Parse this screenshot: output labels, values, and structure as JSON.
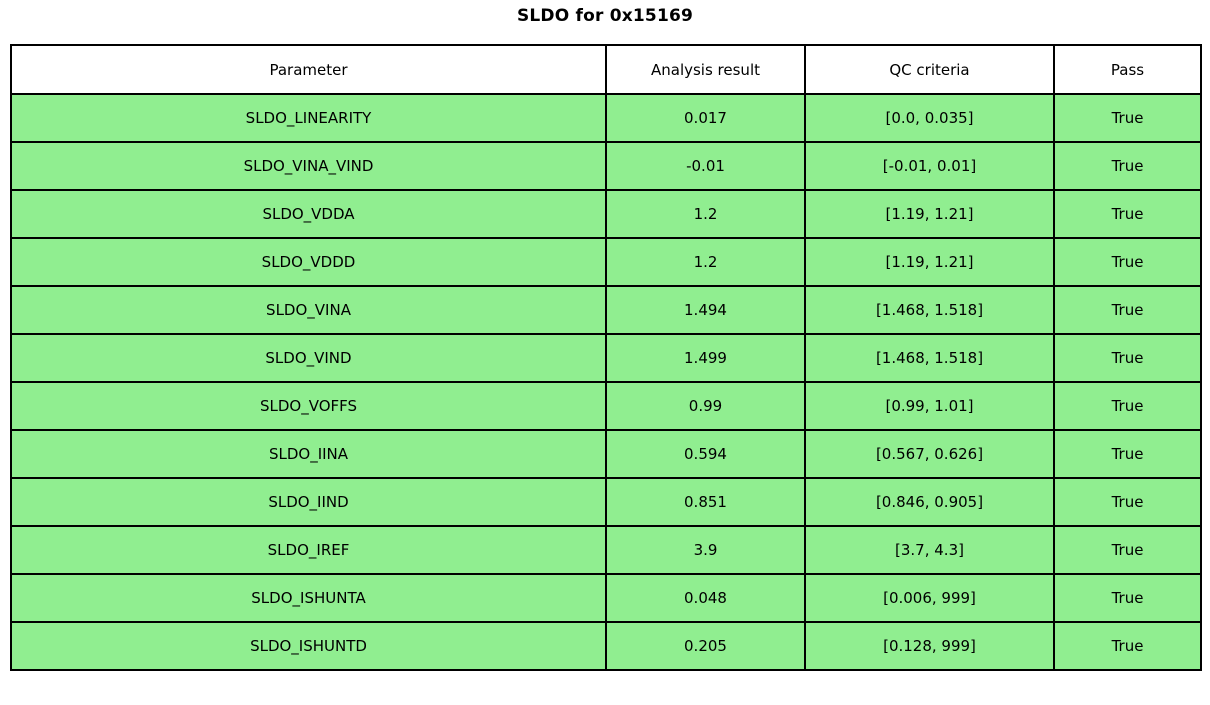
{
  "title": "SLDO for 0x15169",
  "colors": {
    "row_bg": "#90EE90",
    "header_bg": "#FFFFFF",
    "border": "#000000",
    "text": "#000000"
  },
  "table": {
    "columns": [
      "Parameter",
      "Analysis result",
      "QC criteria",
      "Pass"
    ],
    "rows": [
      {
        "parameter": "SLDO_LINEARITY",
        "result": "0.017",
        "qc": "[0.0, 0.035]",
        "pass": "True"
      },
      {
        "parameter": "SLDO_VINA_VIND",
        "result": "-0.01",
        "qc": "[-0.01, 0.01]",
        "pass": "True"
      },
      {
        "parameter": "SLDO_VDDA",
        "result": "1.2",
        "qc": "[1.19, 1.21]",
        "pass": "True"
      },
      {
        "parameter": "SLDO_VDDD",
        "result": "1.2",
        "qc": "[1.19, 1.21]",
        "pass": "True"
      },
      {
        "parameter": "SLDO_VINA",
        "result": "1.494",
        "qc": "[1.468, 1.518]",
        "pass": "True"
      },
      {
        "parameter": "SLDO_VIND",
        "result": "1.499",
        "qc": "[1.468, 1.518]",
        "pass": "True"
      },
      {
        "parameter": "SLDO_VOFFS",
        "result": "0.99",
        "qc": "[0.99, 1.01]",
        "pass": "True"
      },
      {
        "parameter": "SLDO_IINA",
        "result": "0.594",
        "qc": "[0.567, 0.626]",
        "pass": "True"
      },
      {
        "parameter": "SLDO_IIND",
        "result": "0.851",
        "qc": "[0.846, 0.905]",
        "pass": "True"
      },
      {
        "parameter": "SLDO_IREF",
        "result": "3.9",
        "qc": "[3.7, 4.3]",
        "pass": "True"
      },
      {
        "parameter": "SLDO_ISHUNTA",
        "result": "0.048",
        "qc": "[0.006, 999]",
        "pass": "True"
      },
      {
        "parameter": "SLDO_ISHUNTD",
        "result": "0.205",
        "qc": "[0.128, 999]",
        "pass": "True"
      }
    ]
  },
  "chart_data": {
    "type": "table",
    "title": "SLDO for 0x15169",
    "columns": [
      "Parameter",
      "Analysis result",
      "QC criteria",
      "Pass"
    ],
    "rows": [
      [
        "SLDO_LINEARITY",
        0.017,
        "[0.0, 0.035]",
        true
      ],
      [
        "SLDO_VINA_VIND",
        -0.01,
        "[-0.01, 0.01]",
        true
      ],
      [
        "SLDO_VDDA",
        1.2,
        "[1.19, 1.21]",
        true
      ],
      [
        "SLDO_VDDD",
        1.2,
        "[1.19, 1.21]",
        true
      ],
      [
        "SLDO_VINA",
        1.494,
        "[1.468, 1.518]",
        true
      ],
      [
        "SLDO_VIND",
        1.499,
        "[1.468, 1.518]",
        true
      ],
      [
        "SLDO_VOFFS",
        0.99,
        "[0.99, 1.01]",
        true
      ],
      [
        "SLDO_IINA",
        0.594,
        "[0.567, 0.626]",
        true
      ],
      [
        "SLDO_IIND",
        0.851,
        "[0.846, 0.905]",
        true
      ],
      [
        "SLDO_IREF",
        3.9,
        "[3.7, 4.3]",
        true
      ],
      [
        "SLDO_ISHUNTA",
        0.048,
        "[0.006, 999]",
        true
      ],
      [
        "SLDO_ISHUNTD",
        0.205,
        "[0.128, 999]",
        true
      ]
    ],
    "layout": {
      "header_bg": "#FFFFFF",
      "row_bg": "#90EE90",
      "border_color": "#000000",
      "all_pass": true
    }
  }
}
